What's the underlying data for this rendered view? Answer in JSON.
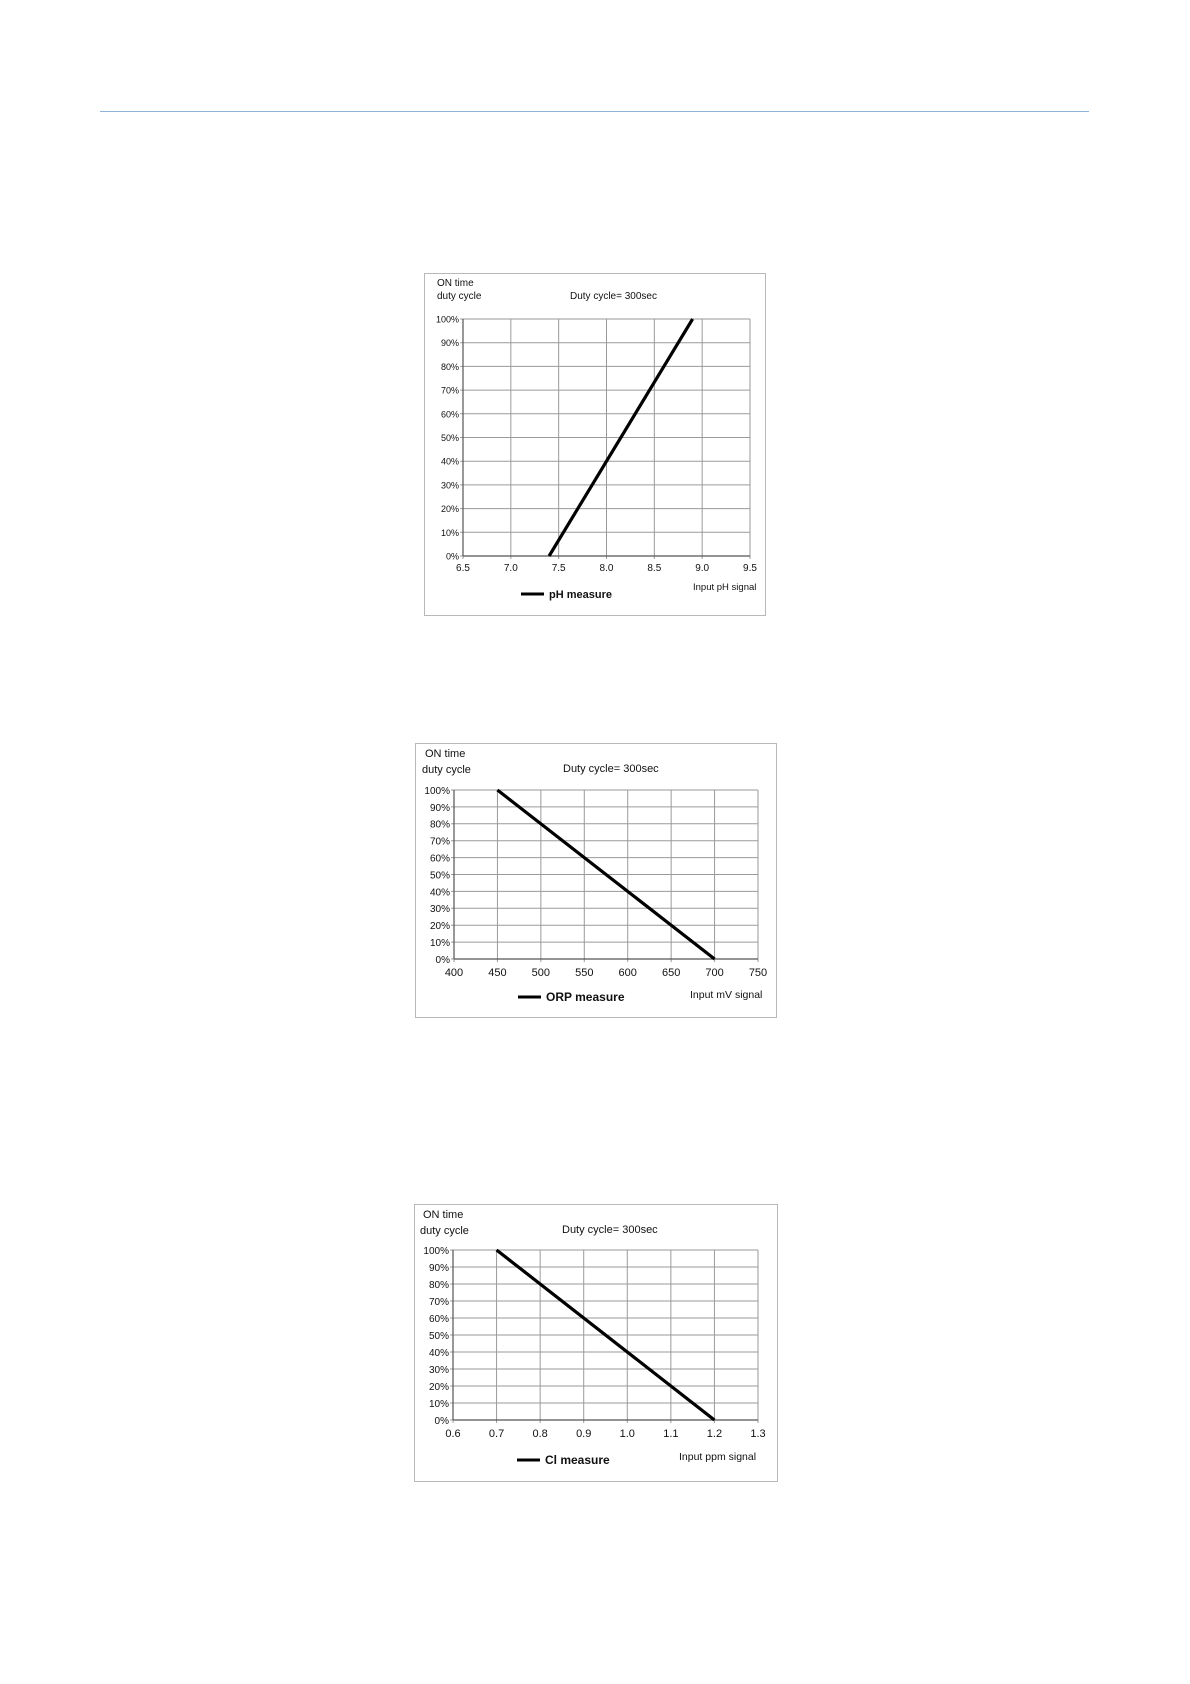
{
  "theme": {
    "rule_color": "#8eb3d8",
    "grid_color": "#9a9a9a",
    "line_color": "#000000"
  },
  "chart_data": [
    {
      "type": "line",
      "title": "Duty cycle= 300sec",
      "ylabel_lines": [
        "ON time",
        "duty cycle"
      ],
      "xlabel": "Input pH signal",
      "x_ticks": [
        "6.5",
        "7.0",
        "7.5",
        "8.0",
        "8.5",
        "9.0",
        "9.5"
      ],
      "y_ticks": [
        "0%",
        "10%",
        "20%",
        "30%",
        "40%",
        "50%",
        "60%",
        "70%",
        "80%",
        "90%",
        "100%"
      ],
      "xlim": [
        6.5,
        9.5
      ],
      "ylim": [
        0,
        100
      ],
      "grid": true,
      "legend_position": "bottom",
      "series": [
        {
          "name": "pH measure",
          "x": [
            7.4,
            8.9
          ],
          "y": [
            0,
            100
          ]
        }
      ]
    },
    {
      "type": "line",
      "title": "Duty cycle= 300sec",
      "ylabel_lines": [
        "ON time",
        "duty cycle"
      ],
      "xlabel": "Input mV signal",
      "x_ticks": [
        "400",
        "450",
        "500",
        "550",
        "600",
        "650",
        "700",
        "750"
      ],
      "y_ticks": [
        "0%",
        "10%",
        "20%",
        "30%",
        "40%",
        "50%",
        "60%",
        "70%",
        "80%",
        "90%",
        "100%"
      ],
      "xlim": [
        400,
        750
      ],
      "ylim": [
        0,
        100
      ],
      "grid": true,
      "legend_position": "bottom",
      "series": [
        {
          "name": "ORP measure",
          "x": [
            450,
            700
          ],
          "y": [
            100,
            0
          ]
        }
      ]
    },
    {
      "type": "line",
      "title": "Duty cycle= 300sec",
      "ylabel_lines": [
        "ON time",
        "duty cycle"
      ],
      "xlabel": "Input ppm signal",
      "x_ticks": [
        "0.6",
        "0.7",
        "0.8",
        "0.9",
        "1.0",
        "1.1",
        "1.2",
        "1.3"
      ],
      "y_ticks": [
        "0%",
        "10%",
        "20%",
        "30%",
        "40%",
        "50%",
        "60%",
        "70%",
        "80%",
        "90%",
        "100%"
      ],
      "xlim": [
        0.6,
        1.3
      ],
      "ylim": [
        0,
        100
      ],
      "grid": true,
      "legend_position": "bottom",
      "series": [
        {
          "name": "Cl measure",
          "x": [
            0.7,
            1.2
          ],
          "y": [
            100,
            0
          ]
        }
      ]
    }
  ]
}
